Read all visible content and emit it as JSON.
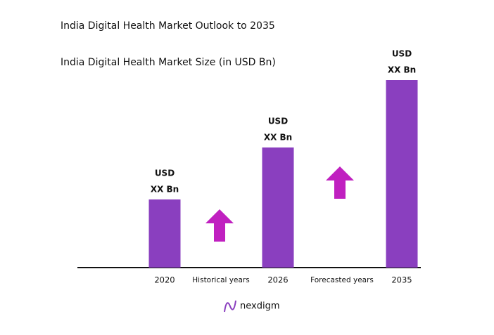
{
  "chart_data": {
    "type": "bar",
    "title": "India Digital Health Market Outlook to 2035",
    "subtitle": "India Digital Health Market Size (in USD Bn)",
    "categories": [
      "2020",
      "2026",
      "2035"
    ],
    "values": [
      97,
      171,
      267
    ],
    "bar_labels": [
      [
        "USD",
        "XX Bn"
      ],
      [
        "USD",
        "XX Bn"
      ],
      [
        "USD",
        "XX Bn"
      ]
    ],
    "period_labels": [
      "Historical years",
      "Forecasted years"
    ],
    "color": "#8a3fbf",
    "ylim": [
      0,
      300
    ],
    "brand": "nexdigm"
  }
}
